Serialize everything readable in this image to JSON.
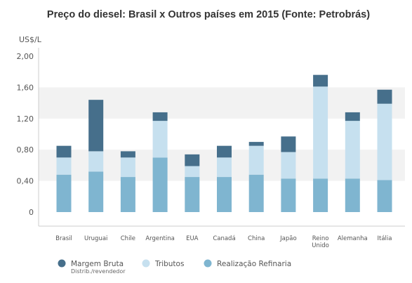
{
  "chart_data": {
    "type": "bar",
    "stacked": true,
    "title": "Preço do diesel: Brasil x Outros países em 2015 (Fonte: Petrobrás)",
    "unit_label": "US$/L",
    "ylim": [
      0,
      2.0
    ],
    "y_ticks": [
      "2,00",
      "1,60",
      "1,20",
      "0,80",
      "0,40",
      "0"
    ],
    "y_tick_values": [
      2.0,
      1.6,
      1.2,
      0.8,
      0.4,
      0
    ],
    "banded_background": true,
    "categories": [
      "Brasil",
      "Uruguai",
      "Chile",
      "Argentina",
      "EUA",
      "Canadá",
      "China",
      "Japão",
      "Reino Unido",
      "Alemanha",
      "Itália"
    ],
    "series": [
      {
        "name": "Realização Refinaria",
        "color": "#7fb5d0",
        "values": [
          0.48,
          0.52,
          0.45,
          0.7,
          0.45,
          0.45,
          0.48,
          0.43,
          0.43,
          0.43,
          0.41
        ]
      },
      {
        "name": "Tributos",
        "color": "#c6e0ef",
        "values": [
          0.22,
          0.26,
          0.25,
          0.47,
          0.14,
          0.25,
          0.37,
          0.34,
          1.18,
          0.74,
          0.98
        ]
      },
      {
        "name": "Margem Bruta",
        "color": "#466f8b",
        "values": [
          0.15,
          0.66,
          0.08,
          0.11,
          0.15,
          0.15,
          0.05,
          0.2,
          0.15,
          0.11,
          0.18
        ]
      }
    ],
    "legend": {
      "placement": "bottom",
      "items": [
        {
          "label": "Margem Bruta",
          "sublabel": "Distrib./revendedor",
          "color": "#466f8b"
        },
        {
          "label": "Tributos",
          "sublabel": "",
          "color": "#c6e0ef"
        },
        {
          "label": "Realização Refinaria",
          "sublabel": "",
          "color": "#7fb5d0"
        }
      ]
    }
  }
}
